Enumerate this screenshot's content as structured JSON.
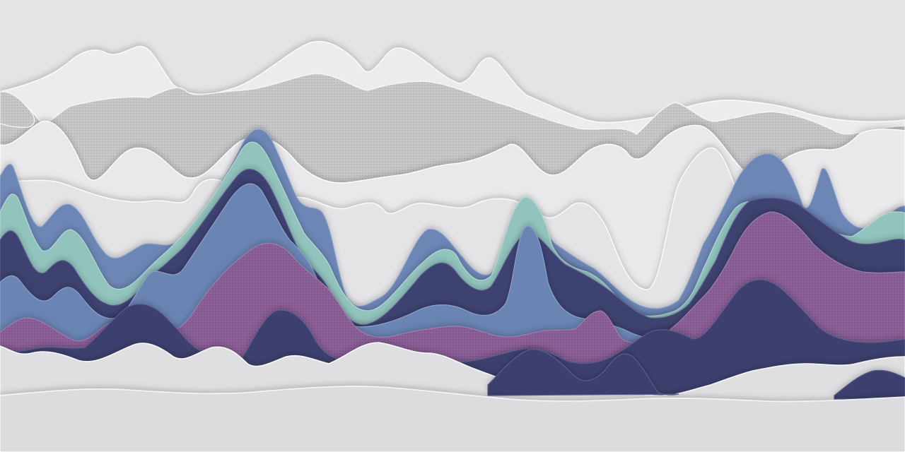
{
  "scene": {
    "subject": "paper-cut-landscape",
    "colors": {
      "background": "#e4e4e6",
      "paper_light": "#ededee",
      "paper_mid": "#e1e1e3",
      "paper_front": "#dcdcde",
      "mesh_grey": "#c9c9cb",
      "blue": "#6d86b6",
      "teal": "#92c3bd",
      "navy": "#3e4270",
      "purple": "#8a5f96"
    }
  }
}
